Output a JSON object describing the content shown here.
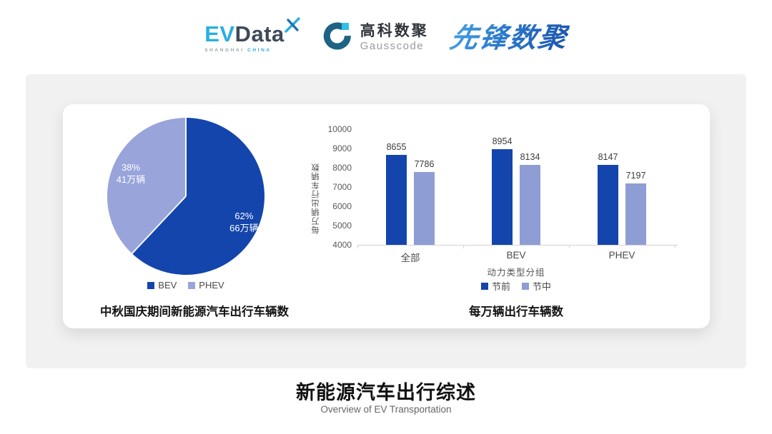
{
  "header": {
    "evdata": {
      "ev": "EV",
      "data": "Data",
      "sub1": "SHANGHAI",
      "sub2": "CHINA"
    },
    "gausscode": {
      "cn": "高科数聚",
      "en": "Gausscode"
    },
    "pioneer": {
      "text": "先锋数聚"
    }
  },
  "footer": {
    "title": "新能源汽车出行综述",
    "subtitle": "Overview of EV Transportation"
  },
  "colors": {
    "brand_cyan": "#29aee3",
    "brand_navy": "#3e4a59",
    "pioneer_blue": "#2a78cc",
    "panel_grey": "#f1f1f2",
    "dark_blue": "#1445ac",
    "light_periwinkle": "#8f9dd5"
  },
  "chart_data": [
    {
      "type": "pie",
      "title": "中秋国庆期间新能源汽车出行车辆数",
      "slices": [
        {
          "label": "BEV",
          "percent": 62,
          "value_label": "66万辆",
          "color": "#1445ac"
        },
        {
          "label": "PHEV",
          "percent": 38,
          "value_label": "41万辆",
          "color": "#98a4da"
        }
      ],
      "start_angle_deg": 0,
      "legend_position": "bottom"
    },
    {
      "type": "bar",
      "title": "每万辆出行车辆数",
      "categories": [
        "全部",
        "BEV",
        "PHEV"
      ],
      "series": [
        {
          "name": "节前",
          "color": "#1445ac",
          "values": [
            8655,
            8954,
            8147
          ]
        },
        {
          "name": "节中",
          "color": "#8f9dd5",
          "values": [
            7786,
            8134,
            7197
          ]
        }
      ],
      "xlabel": "动力类型分组",
      "ylabel": "每万辆出行车辆数",
      "ylim": [
        4000,
        10000
      ],
      "ytick_step": 1000,
      "grid": false,
      "legend_position": "bottom"
    }
  ]
}
